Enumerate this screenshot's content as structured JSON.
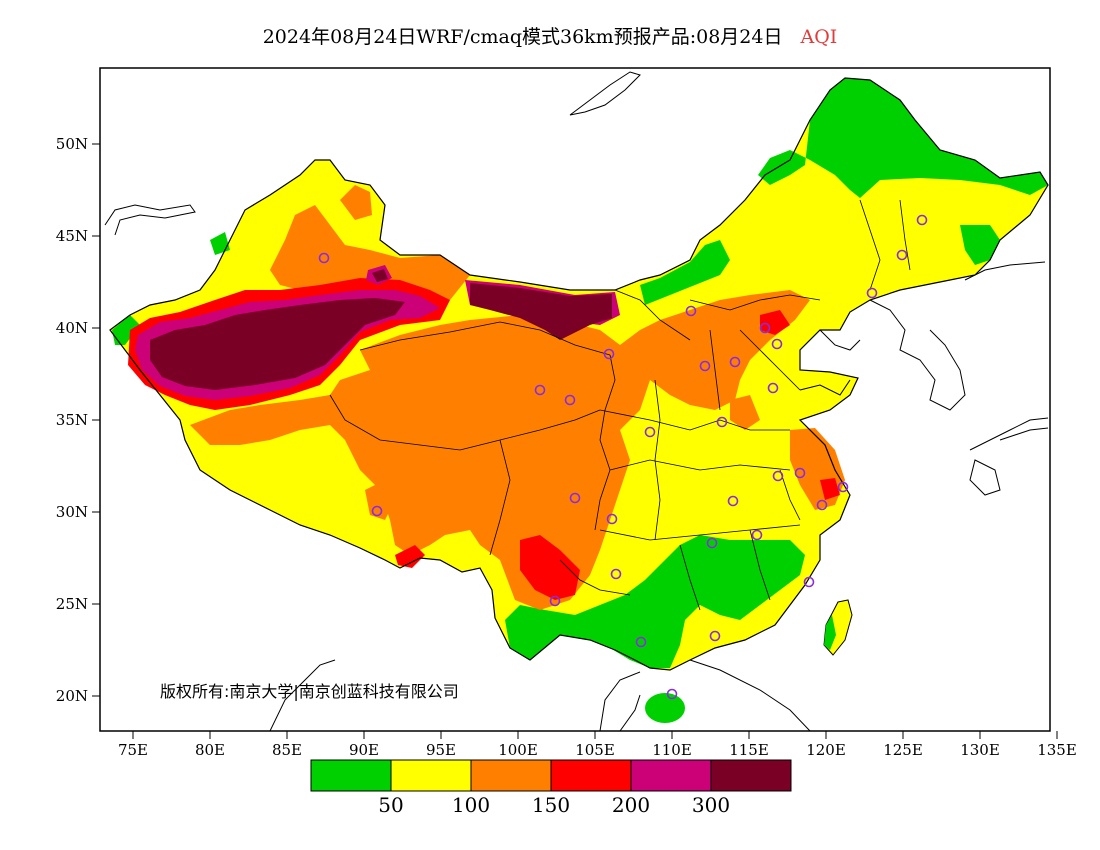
{
  "title": {
    "main": "2024年08月24日WRF/cmaq模式36km预报产品:08月24日",
    "parameter": "AQI",
    "parameter_color": "#e03c3c"
  },
  "map": {
    "lon_ticks": [
      "75E",
      "80E",
      "85E",
      "90E",
      "95E",
      "100E",
      "105E",
      "110E",
      "115E",
      "120E",
      "125E",
      "130E",
      "135E"
    ],
    "lat_ticks": [
      "50N",
      "45N",
      "40N",
      "35N",
      "30N",
      "25N",
      "20N"
    ],
    "credit": "版权所有:南京大学|南京创蓝科技有限公司"
  },
  "legend": {
    "colors": [
      "#00d000",
      "#ffff00",
      "#ff8000",
      "#ff0000",
      "#cc0077",
      "#7a0026"
    ],
    "labels": [
      "50",
      "100",
      "150",
      "200",
      "300"
    ]
  },
  "colors": {
    "good": "#00d000",
    "moderate": "#ffff00",
    "usg": "#ff8000",
    "unhealthy": "#ff0000",
    "very_unhealthy": "#cc0077",
    "hazardous": "#7a0026",
    "city_marker": "#8a2be2"
  }
}
